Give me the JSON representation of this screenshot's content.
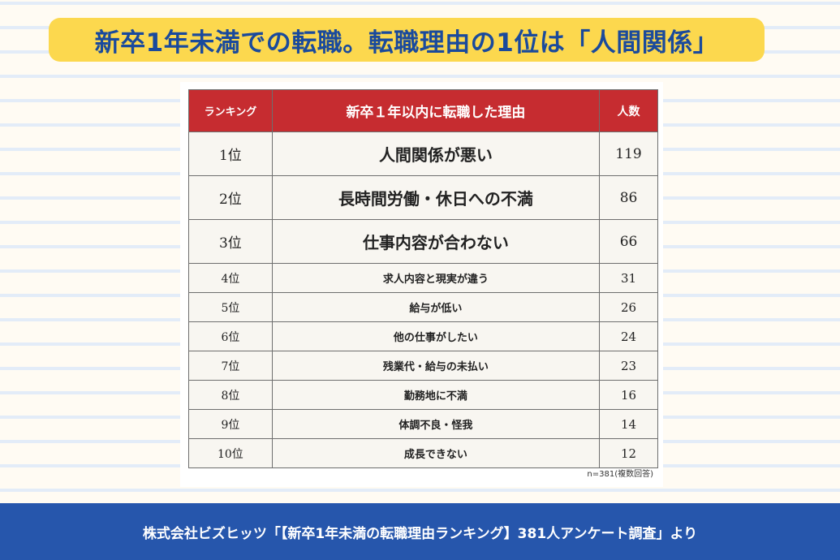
{
  "header": {
    "title": "新卒1年未満での転職。転職理由の1位は「人間関係」"
  },
  "table": {
    "columns": {
      "rank": "ランキング",
      "reason": "新卒１年以内に転職した理由",
      "count": "人数"
    },
    "rows": [
      {
        "rank": "1位",
        "reason": "人間関係が悪い",
        "count": "119"
      },
      {
        "rank": "2位",
        "reason": "長時間労働・休日への不満",
        "count": "86"
      },
      {
        "rank": "3位",
        "reason": "仕事内容が合わない",
        "count": "66"
      },
      {
        "rank": "4位",
        "reason": "求人内容と現実が違う",
        "count": "31"
      },
      {
        "rank": "5位",
        "reason": "給与が低い",
        "count": "26"
      },
      {
        "rank": "6位",
        "reason": "他の仕事がしたい",
        "count": "24"
      },
      {
        "rank": "7位",
        "reason": "残業代・給与の未払い",
        "count": "23"
      },
      {
        "rank": "8位",
        "reason": "勤務地に不満",
        "count": "16"
      },
      {
        "rank": "9位",
        "reason": "体調不良・怪我",
        "count": "14"
      },
      {
        "rank": "10位",
        "reason": "成長できない",
        "count": "12"
      }
    ],
    "note": "n=381(複数回答)"
  },
  "footer": {
    "source": "株式会社ビズヒッツ「【新卒1年未満の転職理由ランキング】381人アンケート調査」より"
  },
  "colors": {
    "title_banner": "#fcd84e",
    "title_text": "#1a4a9c",
    "table_header": "#c62c30",
    "footer_bg": "#2656ac",
    "background": "#fffbf3",
    "stripe": "#e3ecf8"
  }
}
